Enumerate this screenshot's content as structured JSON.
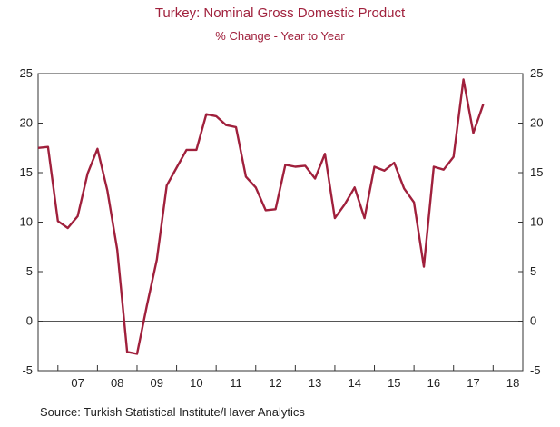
{
  "chart_data": {
    "type": "line",
    "title": "Turkey: Nominal Gross Domestic Product",
    "subtitle": "% Change - Year to Year",
    "source": "Source:  Turkish Statistical Institute/Haver Analytics",
    "y_ticks": [
      "25",
      "20",
      "15",
      "10",
      "5",
      "0",
      "-5"
    ],
    "x_ticks": [
      "07",
      "08",
      "09",
      "10",
      "11",
      "12",
      "13",
      "14",
      "15",
      "16",
      "17",
      "18"
    ],
    "ylim": [
      -5,
      25
    ],
    "x_range": [
      2006.5,
      2018.75
    ],
    "grid": false,
    "zero_line": true,
    "line_color": "#a0203c",
    "series": [
      {
        "x": [
          2006.5,
          2006.75,
          2007.0,
          2007.25,
          2007.5,
          2007.75,
          2008.0,
          2008.25,
          2008.5,
          2008.75,
          2009.0,
          2009.25,
          2009.5,
          2009.75,
          2010.0,
          2010.25,
          2010.5,
          2010.75,
          2011.0,
          2011.25,
          2011.5,
          2011.75,
          2012.0,
          2012.25,
          2012.5,
          2012.75,
          2013.0,
          2013.25,
          2013.5,
          2013.75,
          2014.0,
          2014.25,
          2014.5,
          2014.75,
          2015.0,
          2015.25,
          2015.5,
          2015.75,
          2016.0,
          2016.25,
          2016.5,
          2016.75,
          2017.0,
          2017.25,
          2017.5,
          2017.75
        ],
        "values": [
          17.5,
          17.6,
          10.1,
          9.4,
          10.6,
          14.9,
          17.4,
          13.2,
          7.2,
          -3.1,
          -3.3,
          1.6,
          6.2,
          13.7,
          15.5,
          17.3,
          17.3,
          20.9,
          20.7,
          19.8,
          19.6,
          14.6,
          13.5,
          11.2,
          11.3,
          15.8,
          15.6,
          15.7,
          14.4,
          16.9,
          10.4,
          11.8,
          13.5,
          10.4,
          15.6,
          15.2,
          16.0,
          13.4,
          12.0,
          5.5,
          15.6,
          15.3,
          16.6,
          24.4,
          19.0,
          21.9
        ]
      }
    ]
  }
}
